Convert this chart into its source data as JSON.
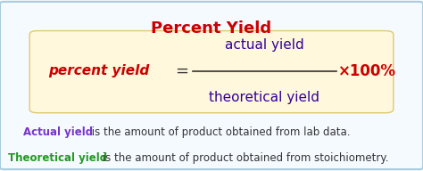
{
  "title": "Percent Yield",
  "title_color": "#cc0000",
  "title_fontsize": 13,
  "bg_color": "#f5faff",
  "box_facecolor": "#fff8dc",
  "box_edgecolor": "#e0c870",
  "formula_left": "percent yield",
  "formula_left_color": "#cc0000",
  "formula_num": "actual yield",
  "formula_den": "theoretical yield",
  "formula_frac_color": "#330099",
  "formula_times": "×100%",
  "formula_times_color": "#cc0000",
  "formula_fontsize": 11,
  "line1_bold": "Actual yield",
  "line1_bold_color": "#7733cc",
  "line1_rest": " is the amount of product obtained from lab data.",
  "line2_bold": "Theoretical yield",
  "line2_bold_color": "#229922",
  "line2_rest": " is the amount of product obtained from stoichiometry.",
  "body_fontsize": 8.5,
  "border_color": "#aaccdd",
  "border_linewidth": 1.5
}
